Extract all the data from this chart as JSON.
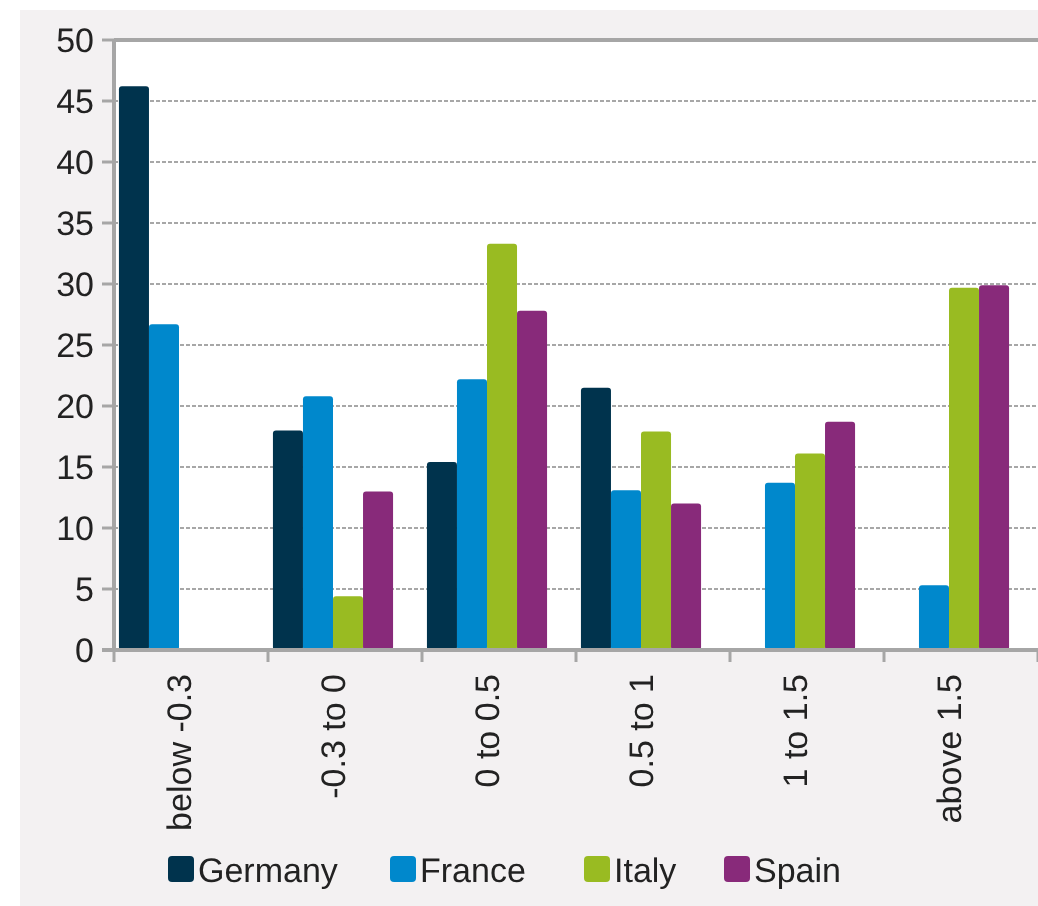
{
  "chart_data": {
    "type": "bar",
    "categories": [
      "below -0.3",
      "-0.3 to 0",
      "0 to 0.5",
      "0.5 to 1",
      "1 to 1.5",
      "above 1.5"
    ],
    "series": [
      {
        "name": "Germany",
        "color": "#00334d",
        "values": [
          46.2,
          18,
          15.4,
          21.5,
          null,
          null
        ]
      },
      {
        "name": "France",
        "color": "#0088cc",
        "values": [
          26.7,
          20.8,
          22.2,
          13.1,
          13.7,
          5.3
        ]
      },
      {
        "name": "Italy",
        "color": "#99bb22",
        "values": [
          null,
          4.4,
          33.3,
          17.9,
          16.1,
          29.7
        ]
      },
      {
        "name": "Spain",
        "color": "#882a7a",
        "values": [
          null,
          13,
          27.8,
          12,
          18.7,
          29.9
        ]
      }
    ],
    "ylim": [
      0,
      50
    ],
    "yticks": [
      0,
      5,
      10,
      15,
      20,
      25,
      30,
      35,
      40,
      45,
      50
    ],
    "grid": "y",
    "legend": "bottom"
  }
}
